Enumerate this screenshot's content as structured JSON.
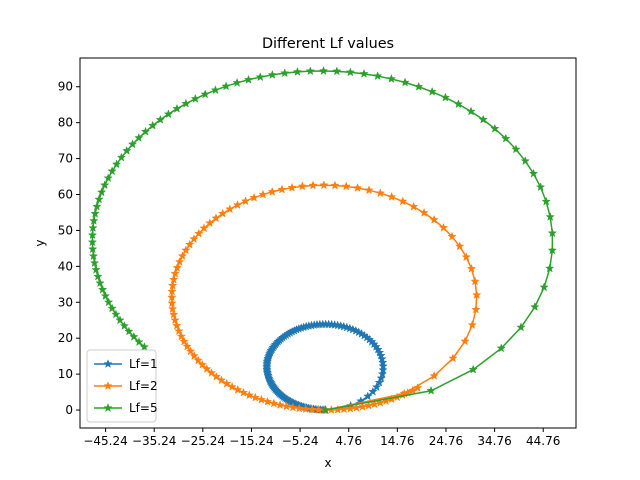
{
  "chart_data": {
    "type": "line",
    "title": "Different Lf values",
    "xlabel": "x",
    "ylabel": "y",
    "xlim": [
      -50.5,
      51.5
    ],
    "ylim": [
      -5,
      98
    ],
    "xticks": [
      -45.24,
      -35.24,
      -25.24,
      -15.24,
      -5.24,
      4.76,
      14.76,
      24.76,
      34.76,
      44.76
    ],
    "xtick_labels": [
      "−45.24",
      "−35.24",
      "−25.24",
      "−15.24",
      "−5.24",
      "4.76",
      "14.76",
      "24.76",
      "34.76",
      "44.76"
    ],
    "yticks": [
      0,
      10,
      20,
      30,
      40,
      50,
      60,
      70,
      80,
      90
    ],
    "ytick_labels": [
      "0",
      "10",
      "20",
      "30",
      "40",
      "50",
      "60",
      "70",
      "80",
      "90"
    ],
    "marker": "star",
    "grid": false,
    "legend_position": "lower-left",
    "series": [
      {
        "name": "Lf=1",
        "color": "#1f77b4",
        "lf": 1,
        "radius": 11.8,
        "turn_fraction": 1.0,
        "points": 120
      },
      {
        "name": "Lf=2",
        "color": "#ff7f0e",
        "lf": 2,
        "radius": 31.0,
        "turn_fraction": 1.1,
        "points": 100
      },
      {
        "name": "Lf=5",
        "color": "#2ca02c",
        "lf": 5,
        "radius": 46.5,
        "turn_fraction": 0.86,
        "points": 80
      }
    ]
  }
}
